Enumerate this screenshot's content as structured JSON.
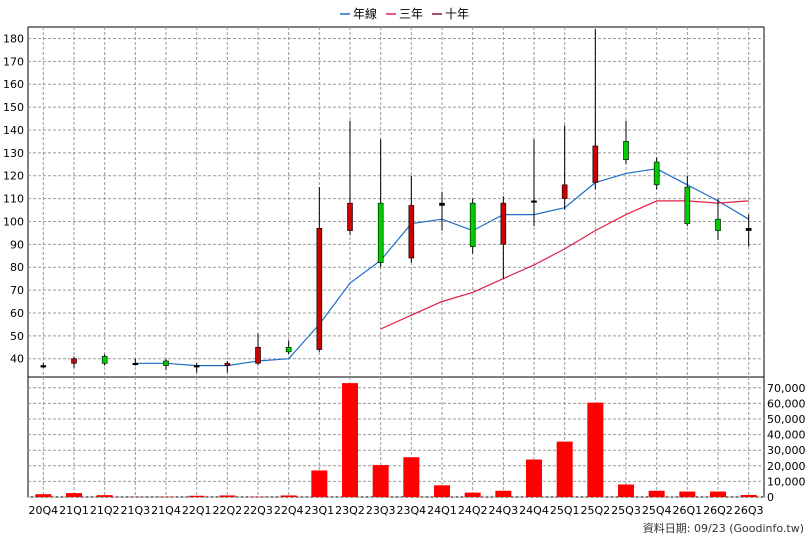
{
  "legend": [
    {
      "label": "年線",
      "color": "#1f6fc8"
    },
    {
      "label": "三年",
      "color": "#e0204a"
    },
    {
      "label": "十年",
      "color": "#8b1050"
    }
  ],
  "footer": "資料日期: 09/23  (Goodinfo.tw)",
  "chart_data": {
    "type": "candlestick-with-volume",
    "categories": [
      "20Q4",
      "21Q1",
      "21Q2",
      "21Q3",
      "21Q4",
      "22Q1",
      "22Q2",
      "22Q3",
      "22Q4",
      "23Q1",
      "23Q2",
      "23Q3",
      "23Q4",
      "24Q1",
      "24Q2",
      "24Q3",
      "24Q4",
      "25Q1",
      "25Q2",
      "25Q3",
      "25Q4",
      "26Q1",
      "26Q2",
      "26Q3"
    ],
    "price_axis": {
      "ylim": [
        32,
        185
      ],
      "ticks": [
        40,
        50,
        60,
        70,
        80,
        90,
        100,
        110,
        120,
        130,
        140,
        150,
        160,
        170,
        180
      ],
      "position": "left"
    },
    "volume_axis": {
      "ylim": [
        0,
        75000
      ],
      "ticks": [
        0,
        10000,
        20000,
        30000,
        40000,
        50000,
        60000,
        70000
      ],
      "tick_labels": [
        "0",
        "10,000",
        "20,000",
        "30,000",
        "40,000",
        "50,000",
        "60,000",
        "70,000"
      ],
      "position": "right"
    },
    "candles": [
      {
        "o": 37,
        "h": 38,
        "l": 36,
        "c": 37,
        "dir": "flat"
      },
      {
        "o": 38,
        "h": 41,
        "l": 36,
        "c": 40,
        "dir": "up"
      },
      {
        "o": 41,
        "h": 42,
        "l": 37,
        "c": 38,
        "dir": "down"
      },
      {
        "o": 38,
        "h": 40,
        "l": 37,
        "c": 38,
        "dir": "flat"
      },
      {
        "o": 39,
        "h": 40,
        "l": 35,
        "c": 37,
        "dir": "down"
      },
      {
        "o": 37,
        "h": 38,
        "l": 34,
        "c": 37,
        "dir": "flat"
      },
      {
        "o": 37,
        "h": 39,
        "l": 34,
        "c": 38,
        "dir": "up"
      },
      {
        "o": 38,
        "h": 51,
        "l": 37,
        "c": 45,
        "dir": "up"
      },
      {
        "o": 45,
        "h": 48,
        "l": 42,
        "c": 43,
        "dir": "down"
      },
      {
        "o": 44,
        "h": 115,
        "l": 43,
        "c": 97,
        "dir": "up"
      },
      {
        "o": 96,
        "h": 144,
        "l": 94,
        "c": 108,
        "dir": "up"
      },
      {
        "o": 108,
        "h": 136,
        "l": 80,
        "c": 82,
        "dir": "down"
      },
      {
        "o": 84,
        "h": 120,
        "l": 82,
        "c": 107,
        "dir": "up"
      },
      {
        "o": 108,
        "h": 113,
        "l": 96,
        "c": 107,
        "dir": "flat"
      },
      {
        "o": 108,
        "h": 110,
        "l": 86,
        "c": 89,
        "dir": "down"
      },
      {
        "o": 90,
        "h": 111,
        "l": 75,
        "c": 108,
        "dir": "up"
      },
      {
        "o": 109,
        "h": 136,
        "l": 98,
        "c": 109,
        "dir": "flat"
      },
      {
        "o": 110,
        "h": 142,
        "l": 105,
        "c": 116,
        "dir": "up"
      },
      {
        "o": 117,
        "h": 184,
        "l": 114,
        "c": 133,
        "dir": "up"
      },
      {
        "o": 135,
        "h": 144,
        "l": 125,
        "c": 127,
        "dir": "down"
      },
      {
        "o": 126,
        "h": 128,
        "l": 114,
        "c": 116,
        "dir": "down"
      },
      {
        "o": 115,
        "h": 120,
        "l": 98,
        "c": 99,
        "dir": "down"
      },
      {
        "o": 101,
        "h": 110,
        "l": 92,
        "c": 96,
        "dir": "down"
      },
      {
        "o": 97,
        "h": 103,
        "l": 89,
        "c": 96,
        "dir": "flat"
      }
    ],
    "series": [
      {
        "name": "年線",
        "values": [
          null,
          null,
          null,
          38,
          38,
          37,
          37,
          39,
          40,
          55,
          73,
          83,
          99,
          101,
          96,
          103,
          103,
          106,
          117,
          121,
          123,
          116,
          109,
          101
        ]
      },
      {
        "name": "三年",
        "values": [
          null,
          null,
          null,
          null,
          null,
          null,
          null,
          null,
          null,
          null,
          null,
          53,
          59,
          65,
          69,
          75,
          81,
          88,
          96,
          103,
          109,
          109,
          108,
          109
        ]
      },
      {
        "name": "十年",
        "values": [
          null,
          null,
          null,
          null,
          null,
          null,
          null,
          null,
          null,
          null,
          null,
          null,
          null,
          null,
          null,
          null,
          null,
          null,
          null,
          null,
          null,
          null,
          null,
          null
        ]
      }
    ],
    "volume": [
      1800,
      2500,
      1200,
      100,
      200,
      800,
      1000,
      200,
      1000,
      17000,
      73000,
      20500,
      25500,
      7500,
      2800,
      4000,
      24000,
      35500,
      60500,
      8000,
      4000,
      3500,
      3500,
      1300
    ],
    "volume_color": "#ff0000",
    "up_color": "#cc0000",
    "down_color": "#00cc00",
    "grid": true
  }
}
